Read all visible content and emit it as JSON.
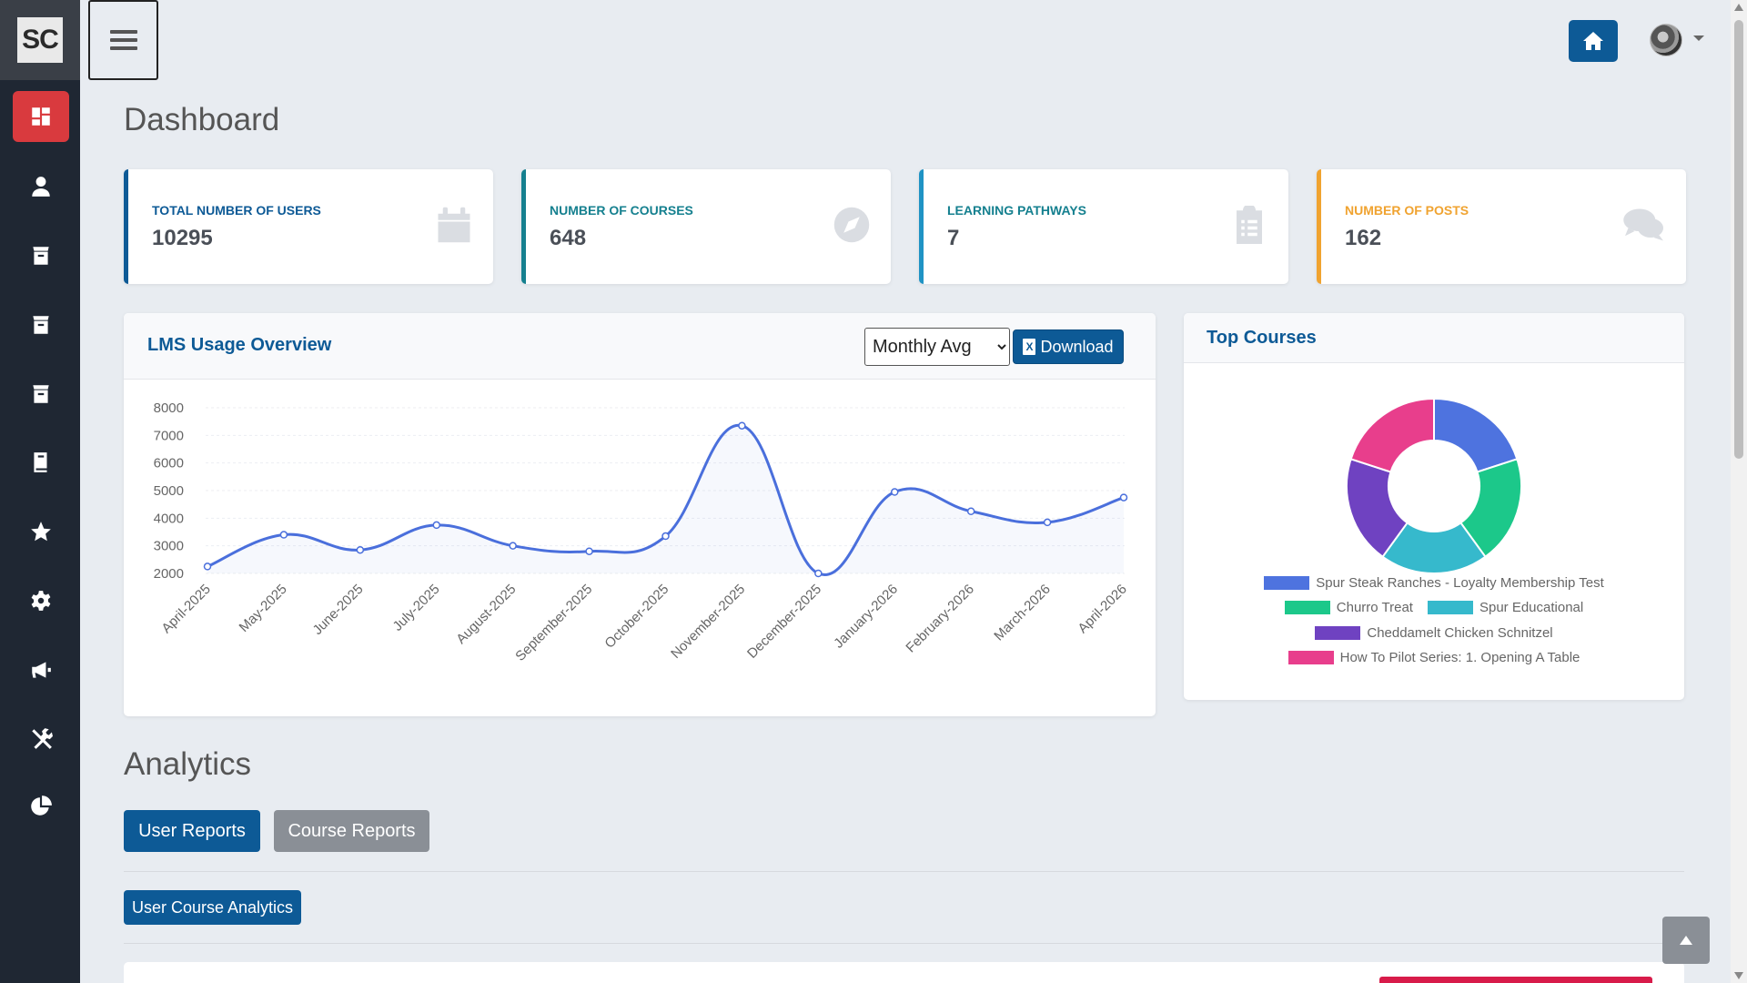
{
  "brand": {
    "logo_text": "SC"
  },
  "sidebar": {
    "items": [
      {
        "icon": "dashboard-icon",
        "active": true
      },
      {
        "icon": "user-icon",
        "active": false
      },
      {
        "icon": "archive-box-icon",
        "active": false
      },
      {
        "icon": "archive-box-icon",
        "active": false
      },
      {
        "icon": "archive-box-icon",
        "active": false
      },
      {
        "icon": "book-icon",
        "active": false
      },
      {
        "icon": "star-icon",
        "active": false
      },
      {
        "icon": "gear-icon",
        "active": false
      },
      {
        "icon": "megaphone-icon",
        "active": false
      },
      {
        "icon": "tools-icon",
        "active": false
      },
      {
        "icon": "pie-chart-icon",
        "active": false
      }
    ]
  },
  "header": {
    "title": "Dashboard"
  },
  "stats": [
    {
      "label": "TOTAL NUMBER OF USERS",
      "value": "10295",
      "icon": "calendar-icon",
      "color": "#0d5a96"
    },
    {
      "label": "NUMBER OF COURSES",
      "value": "648",
      "icon": "compass-icon",
      "color": "#15808f"
    },
    {
      "label": "LEARNING PATHWAYS",
      "value": "7",
      "icon": "clipboard-list-icon",
      "color": "#1f93c4"
    },
    {
      "label": "NUMBER OF POSTS",
      "value": "162",
      "icon": "comments-icon",
      "color": "#f0a330"
    }
  ],
  "usage": {
    "title": "LMS Usage Overview",
    "period_selected": "Monthly Avg",
    "download_label": "Download"
  },
  "top_courses": {
    "title": "Top Courses"
  },
  "analytics": {
    "title": "Analytics",
    "tabs": [
      "User Reports",
      "Course Reports"
    ],
    "sub_button": "User Course Analytics"
  },
  "chart_data": [
    {
      "type": "area",
      "title": "LMS Usage Overview",
      "categories": [
        "April-2025",
        "May-2025",
        "June-2025",
        "July-2025",
        "August-2025",
        "September-2025",
        "October-2025",
        "November-2025",
        "December-2025",
        "January-2026",
        "February-2026",
        "March-2026",
        "April-2026"
      ],
      "values": [
        2250,
        3400,
        2850,
        3750,
        3000,
        2800,
        3350,
        7350,
        2000,
        4950,
        4250,
        3850,
        4750
      ],
      "ylim": [
        2000,
        8000
      ],
      "yticks": [
        8000,
        7000,
        6000,
        5000,
        4000,
        3000,
        2000
      ],
      "color": "#4a6fdc",
      "grid": true
    },
    {
      "type": "pie",
      "title": "Top Courses",
      "labels": [
        "Spur Steak Ranches - Loyalty Membership Test",
        "Churro Treat",
        "Spur Educational",
        "Cheddamelt Chicken Schnitzel",
        "How To Pilot Series: 1. Opening A Table"
      ],
      "values": [
        20,
        20,
        20,
        20,
        20
      ],
      "colors": [
        "#4e73df",
        "#1cc88a",
        "#36b9cc",
        "#6f42c1",
        "#e83e8c"
      ],
      "legend": "bottom"
    }
  ]
}
